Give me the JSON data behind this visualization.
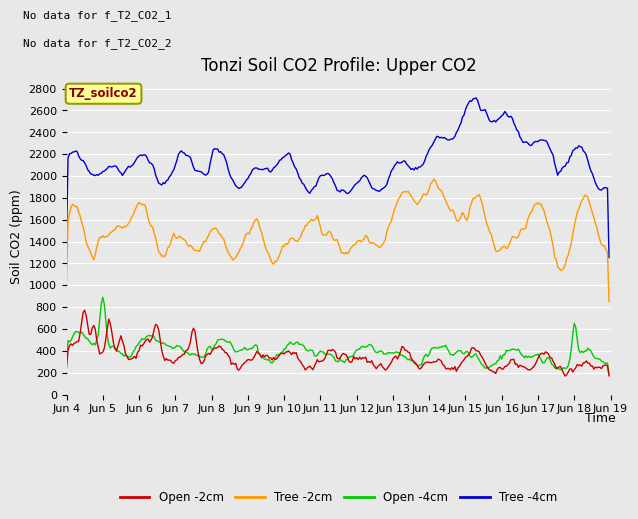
{
  "title": "Tonzi Soil CO2 Profile: Upper CO2",
  "ylabel": "Soil CO2 (ppm)",
  "xlabel": "Time",
  "no_data_text": [
    "No data for f_T2_CO2_1",
    "No data for f_T2_CO2_2"
  ],
  "legend_label": "TZ_soilco2",
  "ylim": [
    0,
    2900
  ],
  "yticks": [
    0,
    200,
    400,
    600,
    800,
    1000,
    1200,
    1400,
    1600,
    1800,
    2000,
    2200,
    2400,
    2600,
    2800
  ],
  "colors": {
    "open_2cm": "#cc0000",
    "tree_2cm": "#ff9900",
    "open_4cm": "#00cc00",
    "tree_4cm": "#0000cc"
  },
  "legend_entries": [
    "Open -2cm",
    "Tree -2cm",
    "Open -4cm",
    "Tree -4cm"
  ],
  "bg_color": "#e8e8e8",
  "plot_bg": "#e8e8e8",
  "grid_color": "#ffffff",
  "linewidth": 1.0,
  "title_fontsize": 12,
  "axis_fontsize": 9,
  "tick_fontsize": 8
}
